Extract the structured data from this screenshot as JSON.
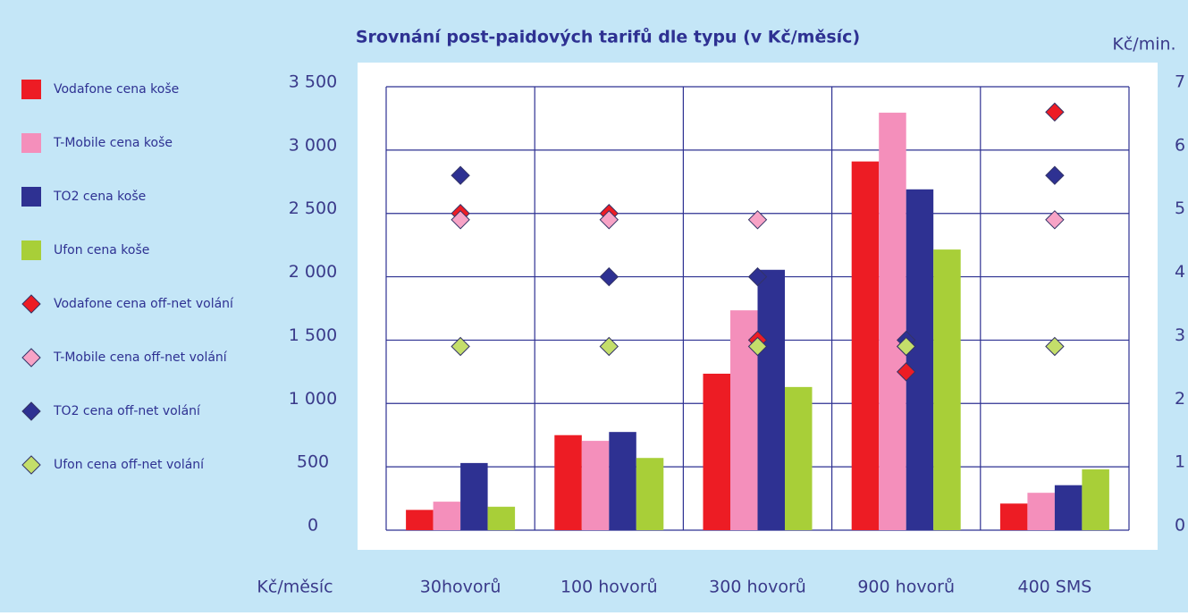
{
  "chart_data": {
    "type": "bar",
    "title": "Srovnání post-paidových tarifů dle typu (v Kč/měsíc)",
    "y_label": "Kč/měsíc",
    "y2_label": "Kč/min.",
    "categories": [
      "30hovorů",
      "100 hovorů",
      "300 hovorů",
      "900 hovorů",
      "400 SMS"
    ],
    "ylim": [
      0,
      3500
    ],
    "yticks": [
      0,
      500,
      {
        "value": 1000,
        "label": "1 000"
      },
      {
        "value": 1500,
        "label": "1 500"
      },
      {
        "value": 2000,
        "label": "2 000"
      },
      {
        "value": 2500,
        "label": "2 500"
      },
      {
        "value": 3000,
        "label": "3 000"
      },
      {
        "value": 3500,
        "label": "3 500"
      }
    ],
    "y2lim": [
      0,
      7
    ],
    "y2ticks": [
      0,
      1,
      2,
      3,
      4,
      5,
      6,
      7
    ],
    "grid": true,
    "series": [
      {
        "name": "Vodafone cena koše",
        "type": "bar",
        "color": "#ed1c24",
        "values": [
          160,
          750,
          1235,
          2910,
          210
        ]
      },
      {
        "name": "T-Mobile cena koše",
        "type": "bar",
        "color": "#f48fbb",
        "values": [
          225,
          705,
          1735,
          3295,
          295
        ]
      },
      {
        "name": "TO2 cena koše",
        "type": "bar",
        "color": "#2e3192",
        "values": [
          530,
          775,
          2055,
          2690,
          355
        ]
      },
      {
        "name": "Ufon cena koše",
        "type": "bar",
        "color": "#a8cf38",
        "values": [
          185,
          570,
          1130,
          2215,
          480
        ]
      },
      {
        "name": "Vodafone cena off-net volání",
        "type": "scatter",
        "axis": "y2",
        "color": "#ed1c24",
        "values": [
          5,
          5,
          3,
          2.5,
          6.6
        ]
      },
      {
        "name": "T-Mobile cena off-net volání",
        "type": "scatter",
        "axis": "y2",
        "color": "#f7a3c6",
        "values": [
          4.9,
          4.9,
          4.9,
          2.9,
          4.9
        ]
      },
      {
        "name": "TO2 cena off-net volání",
        "type": "scatter",
        "axis": "y2",
        "color": "#2e3192",
        "values": [
          5.6,
          4,
          4,
          3,
          5.6
        ]
      },
      {
        "name": "Ufon cena off-net volání",
        "type": "scatter",
        "axis": "y2",
        "color": "#c4de6a",
        "values": [
          2.9,
          2.9,
          2.9,
          2.9,
          2.9
        ]
      }
    ]
  }
}
